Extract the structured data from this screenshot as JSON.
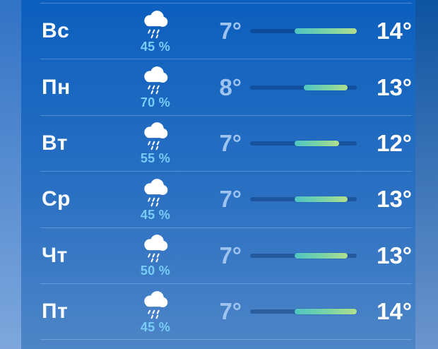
{
  "app": {
    "name": "weather-daily-forecast"
  },
  "forecast": {
    "temp_scale": {
      "min": 2,
      "max": 14
    },
    "rows": [
      {
        "day": "Вс",
        "condition": "rain",
        "precip_label": "45 %",
        "low": 7,
        "high": 14,
        "low_label": "7°",
        "high_label": "14°"
      },
      {
        "day": "Пн",
        "condition": "rain",
        "precip_label": "70 %",
        "low": 8,
        "high": 13,
        "low_label": "8°",
        "high_label": "13°"
      },
      {
        "day": "Вт",
        "condition": "rain",
        "precip_label": "55 %",
        "low": 7,
        "high": 12,
        "low_label": "7°",
        "high_label": "12°"
      },
      {
        "day": "Ср",
        "condition": "rain",
        "precip_label": "45 %",
        "low": 7,
        "high": 13,
        "low_label": "7°",
        "high_label": "13°"
      },
      {
        "day": "Чт",
        "condition": "rain",
        "precip_label": "50 %",
        "low": 7,
        "high": 13,
        "low_label": "7°",
        "high_label": "13°"
      },
      {
        "day": "Пт",
        "condition": "rain",
        "precip_label": "45 %",
        "low": 7,
        "high": 14,
        "low_label": "7°",
        "high_label": "14°"
      }
    ],
    "colors": {
      "bar_fill_start": "#4fc4c2",
      "bar_fill_end": "#b0df8e",
      "bar_track": "rgba(4,42,96,0.38)",
      "low_temp_text": "#9dc3ee",
      "high_temp_text": "#ffffff",
      "precip_text": "#79ccf6",
      "panel_top": "#0c5fbe",
      "panel_bottom": "#4e85c7"
    }
  }
}
